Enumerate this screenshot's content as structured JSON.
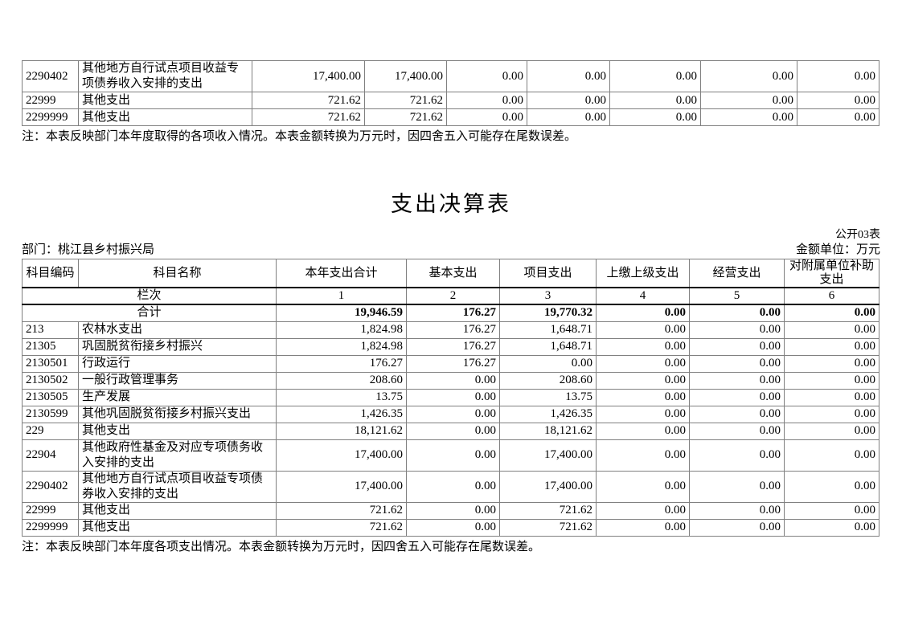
{
  "colors": {
    "border": "#808080",
    "thick_rule": "#000000",
    "text": "#000000",
    "page_bg": "#ffffff"
  },
  "income_table_fragment": {
    "rows": [
      {
        "code": "2290402",
        "name": "其他地方自行试点项目收益专项债券收入安排的支出",
        "values": [
          "17,400.00",
          "17,400.00",
          "0.00",
          "0.00",
          "0.00",
          "0.00",
          "0.00"
        ]
      },
      {
        "code": "22999",
        "name": "其他支出",
        "values": [
          "721.62",
          "721.62",
          "0.00",
          "0.00",
          "0.00",
          "0.00",
          "0.00"
        ]
      },
      {
        "code": "2299999",
        "name": "其他支出",
        "values": [
          "721.62",
          "721.62",
          "0.00",
          "0.00",
          "0.00",
          "0.00",
          "0.00"
        ]
      }
    ],
    "note": "注：本表反映部门本年度取得的各项收入情况。本表金额转换为万元时，因四舍五入可能存在尾数误差。"
  },
  "expenditure_table": {
    "title": "支出决算表",
    "table_code": "公开03表",
    "department": "部门：桃江县乡村振兴局",
    "unit": "金额单位：万元",
    "headers": [
      "科目编码",
      "科目名称",
      "本年支出合计",
      "基本支出",
      "项目支出",
      "上缴上级支出",
      "经营支出",
      "对附属单位补助支出"
    ],
    "column_index_label": "栏次",
    "column_indices": [
      "1",
      "2",
      "3",
      "4",
      "5",
      "6"
    ],
    "total_row": {
      "label": "合计",
      "values": [
        "19,946.59",
        "176.27",
        "19,770.32",
        "0.00",
        "0.00",
        "0.00"
      ]
    },
    "rows": [
      {
        "code": "213",
        "name": "农林水支出",
        "values": [
          "1,824.98",
          "176.27",
          "1,648.71",
          "0.00",
          "0.00",
          "0.00"
        ]
      },
      {
        "code": "21305",
        "name": "巩固脱贫衔接乡村振兴",
        "values": [
          "1,824.98",
          "176.27",
          "1,648.71",
          "0.00",
          "0.00",
          "0.00"
        ]
      },
      {
        "code": "2130501",
        "name": "行政运行",
        "values": [
          "176.27",
          "176.27",
          "0.00",
          "0.00",
          "0.00",
          "0.00"
        ]
      },
      {
        "code": "2130502",
        "name": "一般行政管理事务",
        "values": [
          "208.60",
          "0.00",
          "208.60",
          "0.00",
          "0.00",
          "0.00"
        ]
      },
      {
        "code": "2130505",
        "name": "生产发展",
        "values": [
          "13.75",
          "0.00",
          "13.75",
          "0.00",
          "0.00",
          "0.00"
        ]
      },
      {
        "code": "2130599",
        "name": "其他巩固脱贫衔接乡村振兴支出",
        "values": [
          "1,426.35",
          "0.00",
          "1,426.35",
          "0.00",
          "0.00",
          "0.00"
        ]
      },
      {
        "code": "229",
        "name": "其他支出",
        "values": [
          "18,121.62",
          "0.00",
          "18,121.62",
          "0.00",
          "0.00",
          "0.00"
        ]
      },
      {
        "code": "22904",
        "name": "其他政府性基金及对应专项债务收入安排的支出",
        "values": [
          "17,400.00",
          "0.00",
          "17,400.00",
          "0.00",
          "0.00",
          "0.00"
        ]
      },
      {
        "code": "2290402",
        "name": "其他地方自行试点项目收益专项债券收入安排的支出",
        "values": [
          "17,400.00",
          "0.00",
          "17,400.00",
          "0.00",
          "0.00",
          "0.00"
        ]
      },
      {
        "code": "22999",
        "name": "其他支出",
        "values": [
          "721.62",
          "0.00",
          "721.62",
          "0.00",
          "0.00",
          "0.00"
        ]
      },
      {
        "code": "2299999",
        "name": "其他支出",
        "values": [
          "721.62",
          "0.00",
          "721.62",
          "0.00",
          "0.00",
          "0.00"
        ]
      }
    ],
    "note": "注：本表反映部门本年度各项支出情况。本表金额转换为万元时，因四舍五入可能存在尾数误差。"
  }
}
